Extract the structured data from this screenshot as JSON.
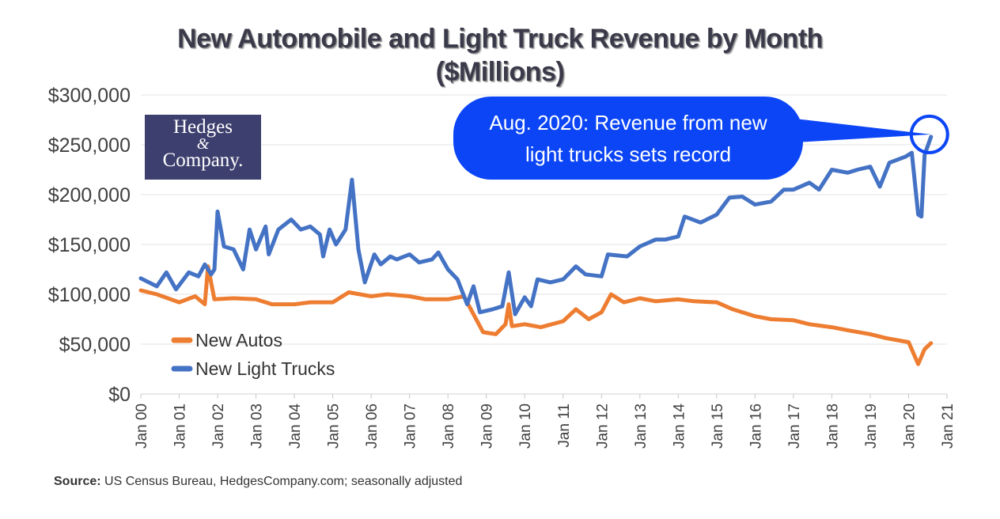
{
  "chart_data": {
    "type": "line",
    "title": "New Automobile and Light Truck Revenue by Month",
    "subtitle": "($Millions)",
    "ylim": [
      0,
      300000
    ],
    "yticks": [
      "$0",
      "$50,000",
      "$100,000",
      "$150,000",
      "$200,000",
      "$250,000",
      "$300,000"
    ],
    "ytick_values": [
      0,
      50000,
      100000,
      150000,
      200000,
      250000,
      300000
    ],
    "xticks": [
      "Jan 00",
      "Jan 01",
      "Jan 02",
      "Jan 03",
      "Jan 04",
      "Jan 05",
      "Jan 06",
      "Jan 07",
      "Jan 08",
      "Jan 09",
      "Jan 10",
      "Jan 11",
      "Jan 12",
      "Jan 13",
      "Jan 14",
      "Jan 15",
      "Jan 16",
      "Jan 17",
      "Jan 18",
      "Jan 19",
      "Jan 20",
      "Jan 21"
    ],
    "xlim": [
      "2000-01",
      "2021-01"
    ],
    "grid": "horizontal",
    "legend_placement": "bottom-left",
    "series": [
      {
        "name": "New Autos",
        "color": "#ed7d31",
        "points": [
          [
            "2000-01",
            104000
          ],
          [
            "2000-06",
            100000
          ],
          [
            "2001-01",
            92000
          ],
          [
            "2001-06",
            98000
          ],
          [
            "2001-09",
            90000
          ],
          [
            "2001-10",
            128000
          ],
          [
            "2001-12",
            95000
          ],
          [
            "2002-06",
            96000
          ],
          [
            "2003-01",
            95000
          ],
          [
            "2003-06",
            90000
          ],
          [
            "2004-01",
            90000
          ],
          [
            "2004-06",
            92000
          ],
          [
            "2005-01",
            92000
          ],
          [
            "2005-06",
            102000
          ],
          [
            "2006-01",
            98000
          ],
          [
            "2006-06",
            100000
          ],
          [
            "2007-01",
            98000
          ],
          [
            "2007-06",
            95000
          ],
          [
            "2008-01",
            95000
          ],
          [
            "2008-06",
            98000
          ],
          [
            "2008-09",
            80000
          ],
          [
            "2008-12",
            62000
          ],
          [
            "2009-04",
            60000
          ],
          [
            "2009-07",
            70000
          ],
          [
            "2009-08",
            90000
          ],
          [
            "2009-09",
            68000
          ],
          [
            "2010-01",
            70000
          ],
          [
            "2010-06",
            67000
          ],
          [
            "2011-01",
            73000
          ],
          [
            "2011-05",
            85000
          ],
          [
            "2011-09",
            75000
          ],
          [
            "2012-01",
            82000
          ],
          [
            "2012-04",
            100000
          ],
          [
            "2012-08",
            92000
          ],
          [
            "2013-01",
            96000
          ],
          [
            "2013-06",
            93000
          ],
          [
            "2014-01",
            95000
          ],
          [
            "2014-06",
            93000
          ],
          [
            "2015-01",
            92000
          ],
          [
            "2015-06",
            85000
          ],
          [
            "2016-01",
            78000
          ],
          [
            "2016-06",
            75000
          ],
          [
            "2017-01",
            74000
          ],
          [
            "2017-06",
            70000
          ],
          [
            "2018-01",
            67000
          ],
          [
            "2018-06",
            64000
          ],
          [
            "2019-01",
            60000
          ],
          [
            "2019-06",
            56000
          ],
          [
            "2020-01",
            52000
          ],
          [
            "2020-04",
            30000
          ],
          [
            "2020-06",
            45000
          ],
          [
            "2020-08",
            51000
          ]
        ]
      },
      {
        "name": "New Light Trucks",
        "color": "#4472c4",
        "points": [
          [
            "2000-01",
            116000
          ],
          [
            "2000-06",
            108000
          ],
          [
            "2000-09",
            122000
          ],
          [
            "2000-12",
            105000
          ],
          [
            "2001-04",
            122000
          ],
          [
            "2001-07",
            118000
          ],
          [
            "2001-09",
            130000
          ],
          [
            "2001-11",
            120000
          ],
          [
            "2001-12",
            125000
          ],
          [
            "2002-01",
            183000
          ],
          [
            "2002-03",
            148000
          ],
          [
            "2002-06",
            145000
          ],
          [
            "2002-09",
            125000
          ],
          [
            "2002-11",
            165000
          ],
          [
            "2003-01",
            145000
          ],
          [
            "2003-04",
            168000
          ],
          [
            "2003-05",
            140000
          ],
          [
            "2003-08",
            165000
          ],
          [
            "2003-12",
            175000
          ],
          [
            "2004-03",
            165000
          ],
          [
            "2004-06",
            168000
          ],
          [
            "2004-09",
            160000
          ],
          [
            "2004-10",
            138000
          ],
          [
            "2004-12",
            165000
          ],
          [
            "2005-02",
            150000
          ],
          [
            "2005-05",
            165000
          ],
          [
            "2005-07",
            215000
          ],
          [
            "2005-09",
            145000
          ],
          [
            "2005-11",
            112000
          ],
          [
            "2006-02",
            140000
          ],
          [
            "2006-04",
            130000
          ],
          [
            "2006-07",
            138000
          ],
          [
            "2006-09",
            135000
          ],
          [
            "2007-01",
            140000
          ],
          [
            "2007-04",
            132000
          ],
          [
            "2007-08",
            135000
          ],
          [
            "2007-10",
            142000
          ],
          [
            "2008-01",
            125000
          ],
          [
            "2008-04",
            115000
          ],
          [
            "2008-07",
            90000
          ],
          [
            "2008-09",
            108000
          ],
          [
            "2008-11",
            82000
          ],
          [
            "2009-03",
            85000
          ],
          [
            "2009-06",
            88000
          ],
          [
            "2009-08",
            122000
          ],
          [
            "2009-10",
            80000
          ],
          [
            "2010-01",
            97000
          ],
          [
            "2010-03",
            88000
          ],
          [
            "2010-05",
            115000
          ],
          [
            "2010-09",
            112000
          ],
          [
            "2011-01",
            115000
          ],
          [
            "2011-05",
            128000
          ],
          [
            "2011-08",
            120000
          ],
          [
            "2012-01",
            118000
          ],
          [
            "2012-03",
            140000
          ],
          [
            "2012-09",
            138000
          ],
          [
            "2013-01",
            148000
          ],
          [
            "2013-06",
            155000
          ],
          [
            "2013-09",
            155000
          ],
          [
            "2014-01",
            158000
          ],
          [
            "2014-03",
            178000
          ],
          [
            "2014-08",
            172000
          ],
          [
            "2015-01",
            180000
          ],
          [
            "2015-05",
            197000
          ],
          [
            "2015-09",
            198000
          ],
          [
            "2016-01",
            190000
          ],
          [
            "2016-06",
            193000
          ],
          [
            "2016-10",
            205000
          ],
          [
            "2017-01",
            205000
          ],
          [
            "2017-06",
            212000
          ],
          [
            "2017-09",
            205000
          ],
          [
            "2018-01",
            225000
          ],
          [
            "2018-06",
            222000
          ],
          [
            "2018-09",
            225000
          ],
          [
            "2019-01",
            228000
          ],
          [
            "2019-04",
            208000
          ],
          [
            "2019-07",
            232000
          ],
          [
            "2019-12",
            238000
          ],
          [
            "2020-02",
            242000
          ],
          [
            "2020-04",
            180000
          ],
          [
            "2020-05",
            178000
          ],
          [
            "2020-06",
            240000
          ],
          [
            "2020-08",
            258000
          ]
        ]
      }
    ],
    "annotation": {
      "line1": "Aug. 2020: Revenue from new",
      "line2": "light trucks sets record",
      "target": [
        "2020-08",
        258000
      ],
      "color": "#0b45f6"
    }
  },
  "logo": {
    "line1": "Hedges",
    "line2": "&",
    "line3": "Company."
  },
  "source": {
    "label": "Source:",
    "text": " US Census Bureau, HedgesCompany.com; seasonally adjusted"
  }
}
